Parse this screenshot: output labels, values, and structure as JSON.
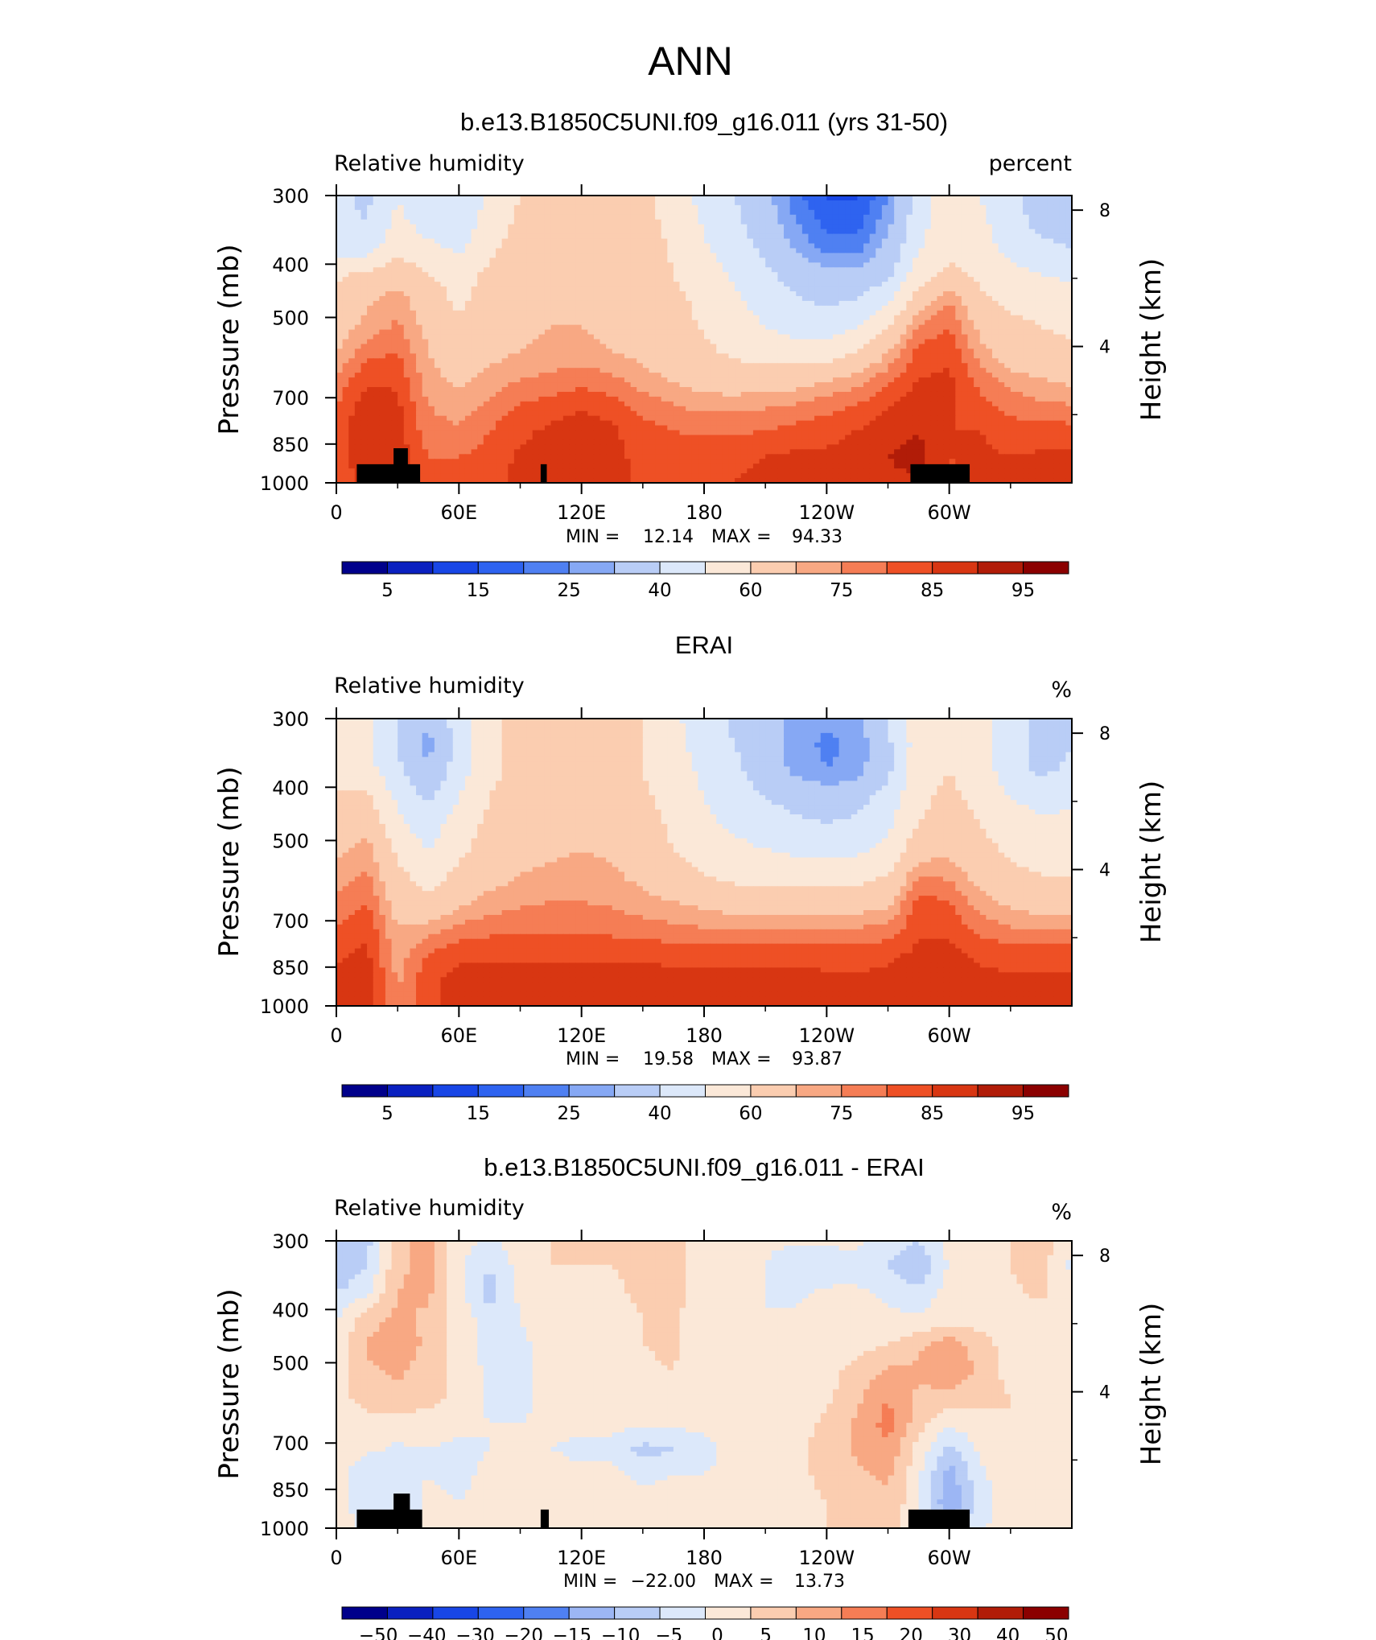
{
  "page_title": "ANN",
  "panels": [
    {
      "title": "b.e13.B1850C5UNI.f09_g16.011 (yrs 31-50)",
      "left_label": "Relative humidity",
      "right_label": "percent",
      "ylabel": "Pressure (mb)",
      "y2label": "Height (km)",
      "stats": {
        "min_label": "MIN =",
        "min": "12.14",
        "max_label": "MAX =",
        "max": "94.33"
      }
    },
    {
      "title": "ERAI",
      "left_label": "Relative humidity",
      "right_label": "%",
      "ylabel": "Pressure (mb)",
      "y2label": "Height (km)",
      "stats": {
        "min_label": "MIN =",
        "min": "19.58",
        "max_label": "MAX =",
        "max": "93.87"
      }
    },
    {
      "title": "b.e13.B1850C5UNI.f09_g16.011 - ERAI",
      "left_label": "Relative humidity",
      "right_label": "%",
      "ylabel": "Pressure (mb)",
      "y2label": "Height (km)",
      "stats": {
        "min_label": "MIN =",
        "min": "−22.00",
        "max_label": "MAX =",
        "max": "13.73"
      }
    }
  ],
  "colors": {
    "blue_red_16": [
      "#00008b",
      "#0a20c0",
      "#1846e6",
      "#2e63f0",
      "#4f80f2",
      "#86a8f4",
      "#b9cdf6",
      "#dce8fa",
      "#fbe8d8",
      "#fbcdb0",
      "#f8a883",
      "#f57d55",
      "#ee5025",
      "#d83612",
      "#b11c08",
      "#8b0000"
    ],
    "diff_16": [
      "#00008b",
      "#0a20c0",
      "#1846e6",
      "#2e63f0",
      "#4f80f2",
      "#9cb6f4",
      "#b9cdf6",
      "#dce8fa",
      "#fbe8d8",
      "#fbcdb0",
      "#f8a883",
      "#f57d55",
      "#ee5025",
      "#d83612",
      "#b11c08",
      "#8b0000"
    ],
    "topo": "#000000"
  },
  "chart_data": [
    {
      "type": "heatmap",
      "title": "b.e13.B1850C5UNI.f09_g16.011 (yrs 31-50)",
      "subtitle_left": "Relative humidity",
      "units": "percent",
      "ylabel": "Pressure (mb)",
      "y2label": "Height (km)",
      "x_ticks": [
        "0",
        "60E",
        "120E",
        "180",
        "120W",
        "60W"
      ],
      "x_range_deg": [
        0,
        360
      ],
      "y_ticks": [
        300,
        400,
        500,
        700,
        850,
        1000
      ],
      "y_range": [
        1000,
        300
      ],
      "y2_ticks": [
        8,
        4
      ],
      "colorbar_labels": [
        "5",
        "15",
        "25",
        "40",
        "60",
        "75",
        "85",
        "95"
      ],
      "levels": [
        5,
        10,
        15,
        20,
        25,
        30,
        40,
        50,
        60,
        70,
        75,
        80,
        85,
        90,
        95
      ],
      "stats": {
        "min": 12.14,
        "max": 94.33
      },
      "topography": [
        {
          "lon_range": [
            10,
            41
          ],
          "p_top": 925
        },
        {
          "lon_range": [
            28,
            35
          ],
          "p_top": 865
        },
        {
          "lon_range": [
            100,
            103
          ],
          "p_top": 925
        },
        {
          "lon_range": [
            281,
            310
          ],
          "p_top": 925
        }
      ],
      "grid_rh": [
        [
          42,
          38,
          50,
          44,
          40,
          52,
          60,
          63,
          65,
          64,
          62,
          55,
          47,
          40,
          32,
          22,
          14,
          14,
          25,
          44,
          56,
          50,
          43,
          34,
          30
        ],
        [
          42,
          40,
          52,
          46,
          43,
          55,
          62,
          65,
          66,
          65,
          63,
          57,
          49,
          42,
          34,
          25,
          18,
          18,
          28,
          46,
          57,
          52,
          44,
          37,
          34
        ],
        [
          45,
          45,
          57,
          52,
          48,
          58,
          64,
          67,
          68,
          66,
          64,
          59,
          51,
          44,
          38,
          29,
          23,
          23,
          32,
          49,
          58,
          54,
          47,
          42,
          40
        ],
        [
          58,
          62,
          66,
          60,
          56,
          62,
          66,
          68,
          68,
          66,
          64,
          60,
          55,
          48,
          42,
          36,
          32,
          32,
          38,
          55,
          62,
          58,
          53,
          50,
          48
        ],
        [
          62,
          69,
          73,
          65,
          58,
          64,
          66,
          69,
          69,
          67,
          65,
          62,
          58,
          52,
          46,
          41,
          38,
          40,
          48,
          65,
          75,
          62,
          58,
          56,
          54
        ],
        [
          66,
          72,
          76,
          68,
          62,
          66,
          68,
          70,
          70,
          68,
          66,
          63,
          59,
          54,
          50,
          46,
          45,
          50,
          60,
          75,
          80,
          68,
          62,
          60,
          58
        ],
        [
          70,
          78,
          80,
          70,
          65,
          68,
          70,
          72,
          72,
          70,
          68,
          65,
          62,
          58,
          56,
          54,
          55,
          60,
          70,
          82,
          84,
          72,
          66,
          64,
          62
        ],
        [
          76,
          84,
          84,
          72,
          68,
          72,
          75,
          76,
          78,
          76,
          72,
          69,
          66,
          65,
          65,
          66,
          69,
          72,
          78,
          85,
          86,
          78,
          72,
          70,
          68
        ],
        [
          80,
          88,
          86,
          75,
          72,
          76,
          80,
          82,
          84,
          82,
          78,
          75,
          73,
          73,
          74,
          75,
          78,
          80,
          84,
          88,
          86,
          82,
          78,
          76,
          75
        ],
        [
          82,
          90,
          87,
          77,
          76,
          80,
          84,
          86,
          88,
          86,
          82,
          80,
          79,
          79,
          80,
          82,
          83,
          85,
          88,
          90,
          85,
          85,
          82,
          82,
          82
        ],
        [
          82,
          90,
          88,
          80,
          80,
          82,
          86,
          86,
          88,
          86,
          84,
          83,
          83,
          84,
          85,
          86,
          86,
          88,
          90,
          92,
          85,
          86,
          85,
          86,
          86
        ],
        [
          80,
          88,
          86,
          82,
          82,
          84,
          86,
          86,
          86,
          86,
          84,
          84,
          84,
          85,
          86,
          87,
          88,
          88,
          89,
          89,
          84,
          86,
          85,
          86,
          86
        ]
      ]
    },
    {
      "type": "heatmap",
      "title": "ERAI",
      "subtitle_left": "Relative humidity",
      "units": "%",
      "ylabel": "Pressure (mb)",
      "y2label": "Height (km)",
      "x_ticks": [
        "0",
        "60E",
        "120E",
        "180",
        "120W",
        "60W"
      ],
      "x_range_deg": [
        0,
        360
      ],
      "y_ticks": [
        300,
        400,
        500,
        700,
        850,
        1000
      ],
      "y_range": [
        1000,
        300
      ],
      "y2_ticks": [
        8,
        4
      ],
      "colorbar_labels": [
        "5",
        "15",
        "25",
        "40",
        "60",
        "75",
        "85",
        "95"
      ],
      "levels": [
        5,
        10,
        15,
        20,
        25,
        30,
        40,
        50,
        60,
        70,
        75,
        80,
        85,
        90,
        95
      ],
      "stats": {
        "min": 19.58,
        "max": 93.87
      },
      "grid_rh": [
        [
          55,
          52,
          40,
          30,
          45,
          58,
          62,
          64,
          65,
          63,
          60,
          52,
          45,
          38,
          32,
          28,
          26,
          28,
          40,
          55,
          60,
          55,
          45,
          38,
          40
        ],
        [
          55,
          52,
          40,
          28,
          44,
          58,
          62,
          64,
          66,
          64,
          60,
          53,
          46,
          40,
          33,
          27,
          24,
          26,
          38,
          55,
          60,
          54,
          44,
          36,
          40
        ],
        [
          56,
          54,
          42,
          30,
          45,
          58,
          62,
          64,
          65,
          64,
          60,
          54,
          48,
          42,
          35,
          28,
          25,
          27,
          38,
          56,
          60,
          55,
          45,
          38,
          42
        ],
        [
          62,
          62,
          48,
          38,
          50,
          60,
          64,
          66,
          66,
          65,
          62,
          56,
          50,
          45,
          40,
          36,
          34,
          36,
          44,
          58,
          62,
          57,
          50,
          46,
          48
        ],
        [
          66,
          68,
          52,
          44,
          55,
          62,
          66,
          67,
          68,
          67,
          64,
          58,
          52,
          48,
          45,
          42,
          40,
          42,
          48,
          60,
          64,
          60,
          55,
          52,
          52
        ],
        [
          68,
          72,
          58,
          50,
          58,
          64,
          68,
          69,
          70,
          69,
          66,
          60,
          55,
          52,
          50,
          48,
          47,
          48,
          52,
          66,
          68,
          63,
          58,
          56,
          56
        ],
        [
          72,
          76,
          62,
          56,
          62,
          67,
          70,
          71,
          72,
          71,
          68,
          64,
          60,
          57,
          56,
          55,
          55,
          56,
          60,
          75,
          74,
          67,
          62,
          60,
          60
        ],
        [
          76,
          80,
          66,
          62,
          68,
          72,
          74,
          75,
          75,
          74,
          72,
          70,
          68,
          66,
          65,
          65,
          65,
          66,
          68,
          82,
          80,
          72,
          68,
          66,
          66
        ],
        [
          80,
          84,
          70,
          72,
          76,
          78,
          78,
          79,
          79,
          78,
          77,
          76,
          75,
          74,
          74,
          74,
          74,
          75,
          76,
          84,
          84,
          78,
          75,
          74,
          74
        ],
        [
          84,
          86,
          72,
          80,
          84,
          84,
          84,
          84,
          84,
          84,
          84,
          83,
          83,
          83,
          83,
          83,
          83,
          83,
          84,
          86,
          86,
          84,
          83,
          83,
          83
        ],
        [
          86,
          88,
          74,
          84,
          87,
          87,
          87,
          87,
          87,
          87,
          87,
          87,
          87,
          87,
          87,
          87,
          86,
          86,
          86,
          88,
          88,
          86,
          86,
          86,
          86
        ],
        [
          86,
          88,
          74,
          84,
          86,
          86,
          86,
          86,
          86,
          86,
          86,
          86,
          86,
          86,
          86,
          86,
          86,
          86,
          86,
          88,
          88,
          86,
          86,
          86,
          86
        ]
      ]
    },
    {
      "type": "heatmap",
      "title": "b.e13.B1850C5UNI.f09_g16.011 - ERAI",
      "subtitle_left": "Relative humidity",
      "units": "%",
      "ylabel": "Pressure (mb)",
      "y2label": "Height (km)",
      "x_ticks": [
        "0",
        "60E",
        "120E",
        "180",
        "120W",
        "60W"
      ],
      "x_range_deg": [
        0,
        360
      ],
      "y_ticks": [
        300,
        400,
        500,
        700,
        850,
        1000
      ],
      "y_range": [
        1000,
        300
      ],
      "y2_ticks": [
        8,
        4
      ],
      "colorbar_labels": [
        "−50",
        "−40",
        "−30",
        "−20",
        "−15",
        "−10",
        "−5",
        "0",
        "5",
        "10",
        "15",
        "20",
        "30",
        "40",
        "50"
      ],
      "levels": [
        -50,
        -45,
        -40,
        -30,
        -20,
        -15,
        -10,
        -5,
        0,
        5,
        10,
        15,
        20,
        30,
        40,
        45,
        50
      ],
      "stats": {
        "min": -22.0,
        "max": 13.73
      },
      "topography": [
        {
          "lon_range": [
            10,
            42
          ],
          "p_top": 925
        },
        {
          "lon_range": [
            28,
            36
          ],
          "p_top": 865
        },
        {
          "lon_range": [
            100,
            104
          ],
          "p_top": 925
        },
        {
          "lon_range": [
            280,
            310
          ],
          "p_top": 925
        }
      ],
      "grid_diff": [
        [
          -14,
          -12,
          4,
          7,
          -3,
          -6,
          -2,
          0,
          0,
          0,
          1,
          3,
          -3,
          -3,
          -4,
          -4,
          -4,
          -4,
          -8,
          -10,
          -4,
          -4,
          0,
          3,
          -5
        ],
        [
          -15,
          -10,
          4,
          7,
          -4,
          -10,
          -3,
          0,
          0,
          0,
          1,
          2,
          -4,
          -4,
          -5,
          -10,
          -8,
          -7,
          -10,
          -15,
          -4,
          -4,
          0,
          2,
          -6
        ],
        [
          -10,
          -6,
          5,
          6,
          -3,
          -12,
          -4,
          -1,
          0,
          -1,
          1,
          2,
          -4,
          -4,
          -5,
          -6,
          -4,
          -4,
          -6,
          -8,
          -3,
          -3,
          -1,
          1,
          -4
        ],
        [
          -5,
          3,
          6,
          4,
          -2,
          -8,
          -5,
          -2,
          -1,
          -2,
          0,
          1,
          -3,
          -4,
          -5,
          -4,
          -4,
          -4,
          -4,
          -4,
          -2,
          -2,
          -2,
          -2,
          -3
        ],
        [
          -3,
          6,
          8,
          4,
          -2,
          -7,
          -6,
          -3,
          -2,
          -2,
          0,
          1,
          -3,
          -4,
          -5,
          -4,
          -4,
          -2,
          0,
          4,
          8,
          2,
          -2,
          -3,
          -4
        ],
        [
          -2,
          4,
          6,
          2,
          -2,
          -6,
          -6,
          -4,
          -3,
          -3,
          -1,
          0,
          -3,
          -4,
          -5,
          -3,
          -2,
          2,
          6,
          6,
          10,
          4,
          -2,
          -3,
          -4
        ],
        [
          -2,
          2,
          4,
          2,
          -2,
          -6,
          -6,
          -4,
          -3,
          -3,
          -2,
          -1,
          -3,
          -4,
          -5,
          -3,
          -1,
          4,
          10,
          4,
          2,
          2,
          0,
          -2,
          -3
        ],
        [
          -2,
          -2,
          -2,
          -3,
          -4,
          -5,
          -5,
          -4,
          -4,
          -4,
          -4,
          -4,
          -4,
          -4,
          -5,
          -2,
          1,
          6,
          12,
          2,
          -4,
          -2,
          0,
          -1,
          -2
        ],
        [
          -2,
          -4,
          -6,
          -5,
          -6,
          -5,
          -5,
          -5,
          -6,
          -6,
          -12,
          -10,
          -6,
          -4,
          -3,
          -1,
          2,
          6,
          9,
          -2,
          -12,
          -4,
          -1,
          -1,
          -2
        ],
        [
          -2,
          -10,
          -6,
          -5,
          -6,
          -4,
          -3,
          -3,
          -4,
          -4,
          -6,
          -5,
          -5,
          -4,
          -4,
          -2,
          2,
          4,
          6,
          -4,
          -18,
          -6,
          -2,
          -2,
          -3
        ],
        [
          -3,
          -8,
          -8,
          -4,
          -5,
          -4,
          -3,
          -3,
          -3,
          -3,
          -3,
          -3,
          -3,
          -3,
          -3,
          -2,
          0,
          2,
          4,
          -4,
          -20,
          -8,
          -2,
          -2,
          -3
        ],
        [
          -3,
          -6,
          -8,
          -4,
          -4,
          -3,
          -3,
          -3,
          -3,
          -3,
          -3,
          -3,
          -3,
          -3,
          -3,
          -2,
          0,
          2,
          3,
          -4,
          -14,
          -6,
          -2,
          -2,
          -3
        ]
      ]
    }
  ]
}
